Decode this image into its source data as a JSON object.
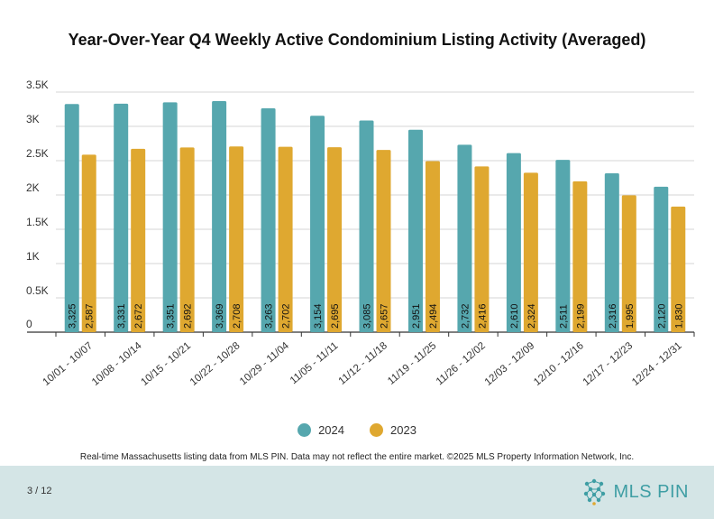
{
  "page": {
    "footnote": "Real-time Massachusetts listing data from MLS PIN. Data may not reflect the entire market. ©2025 MLS Property Information Network, Inc.",
    "page_number": "3 / 12",
    "logo_text": "MLS PIN"
  },
  "chart_data": {
    "type": "bar",
    "title": "Year-Over-Year Q4 Weekly Active Condominium Listing Activity (Averaged)",
    "categories": [
      "10/01 - 10/07",
      "10/08 - 10/14",
      "10/15 - 10/21",
      "10/22 - 10/28",
      "10/29 - 11/04",
      "11/05 - 11/11",
      "11/12 - 11/18",
      "11/19 - 11/25",
      "11/26 - 12/02",
      "12/03 - 12/09",
      "12/10 - 12/16",
      "12/17 - 12/23",
      "12/24 - 12/31"
    ],
    "series": [
      {
        "name": "2024",
        "color": "#56a7ae",
        "values": [
          3325,
          3331,
          3351,
          3369,
          3263,
          3154,
          3085,
          2951,
          2732,
          2610,
          2511,
          2316,
          2120
        ],
        "labels": [
          "3,325",
          "3,331",
          "3,351",
          "3,369",
          "3,263",
          "3,154",
          "3,085",
          "2,951",
          "2,732",
          "2,610",
          "2,511",
          "2,316",
          "2,120"
        ]
      },
      {
        "name": "2023",
        "color": "#dfa830",
        "values": [
          2587,
          2672,
          2692,
          2708,
          2702,
          2695,
          2657,
          2494,
          2416,
          2324,
          2199,
          1995,
          1830
        ],
        "labels": [
          "2,587",
          "2,672",
          "2,692",
          "2,708",
          "2,702",
          "2,695",
          "2,657",
          "2,494",
          "2,416",
          "2,324",
          "2,199",
          "1,995",
          "1,830"
        ]
      }
    ],
    "yticks": [
      "0",
      "0.5K",
      "1K",
      "1.5K",
      "2K",
      "2.5K",
      "3K",
      "3.5K"
    ],
    "ylim": [
      0,
      3500
    ],
    "xlabel": "",
    "ylabel": "",
    "grid": true,
    "legend": "bottom-center"
  }
}
